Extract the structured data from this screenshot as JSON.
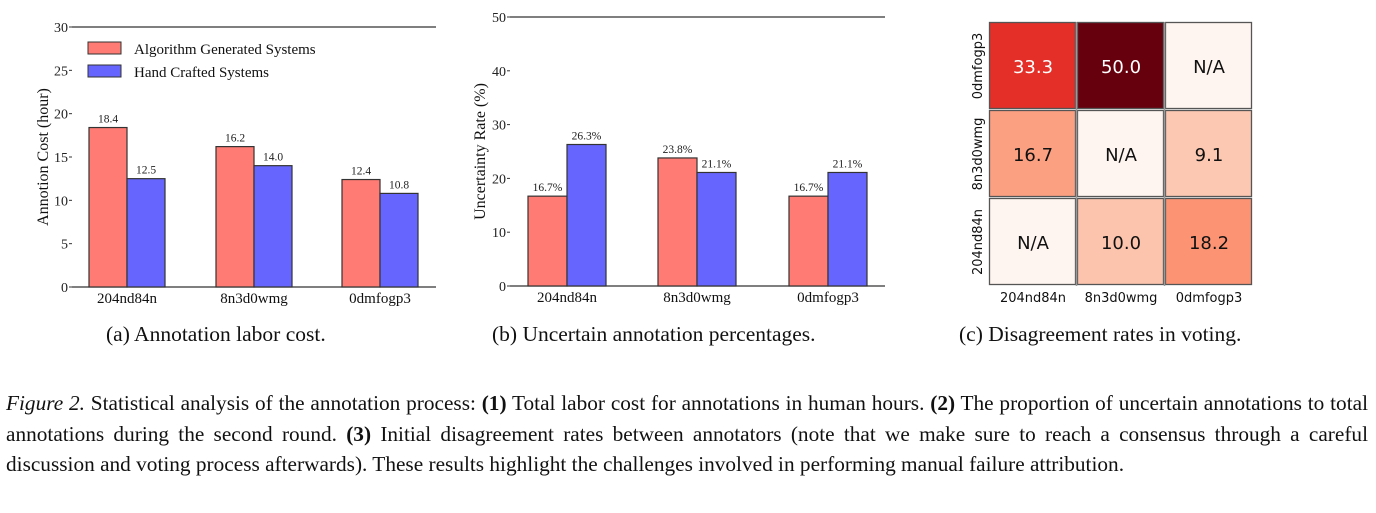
{
  "chart_data": [
    {
      "id": "a",
      "type": "bar",
      "title": "",
      "xlabel": "",
      "ylabel": "Annotion Cost (hour)",
      "ylim": [
        0,
        30
      ],
      "yticks": [
        0,
        5,
        10,
        15,
        20,
        25,
        30
      ],
      "categories": [
        "204nd84n",
        "8n3d0wmg",
        "0dmfogp3"
      ],
      "series": [
        {
          "name": "Algorithm Generated Systems",
          "color": "#ff7b73",
          "values": [
            18.4,
            16.2,
            12.4
          ],
          "labels": [
            "18.4",
            "16.2",
            "12.4"
          ]
        },
        {
          "name": "Hand Crafted Systems",
          "color": "#6666ff",
          "values": [
            12.5,
            14.0,
            10.8
          ],
          "labels": [
            "12.5",
            "14.0",
            "10.8"
          ]
        }
      ],
      "legend": "top-left",
      "grid": false
    },
    {
      "id": "b",
      "type": "bar",
      "title": "",
      "xlabel": "",
      "ylabel": "Uncertainty Rate (%)",
      "ylim": [
        0,
        50
      ],
      "yticks": [
        0,
        10,
        20,
        30,
        40,
        50
      ],
      "categories": [
        "204nd84n",
        "8n3d0wmg",
        "0dmfogp3"
      ],
      "series": [
        {
          "name": "Algorithm Generated Systems",
          "color": "#ff7b73",
          "values": [
            16.7,
            23.8,
            16.7
          ],
          "labels": [
            "16.7%",
            "23.8%",
            "16.7%"
          ]
        },
        {
          "name": "Hand Crafted Systems",
          "color": "#6666ff",
          "values": [
            26.3,
            21.1,
            21.1
          ],
          "labels": [
            "26.3%",
            "21.1%",
            "21.1%"
          ]
        }
      ],
      "grid": false
    },
    {
      "id": "c",
      "type": "heatmap",
      "title": "",
      "x_categories": [
        "204nd84n",
        "8n3d0wmg",
        "0dmfogp3"
      ],
      "y_categories": [
        "0dmfogp3",
        "8n3d0wmg",
        "204nd84n"
      ],
      "cells": [
        [
          {
            "value": 33.3,
            "label": "33.3",
            "color": "#e32f27",
            "text_color": "#ffffff"
          },
          {
            "value": 50.0,
            "label": "50.0",
            "color": "#67000d",
            "text_color": "#ffffff"
          },
          {
            "value": null,
            "label": "N/A",
            "color": "#fff5f0",
            "text_color": "#111111"
          }
        ],
        [
          {
            "value": 16.7,
            "label": "16.7",
            "color": "#fca082",
            "text_color": "#111111"
          },
          {
            "value": null,
            "label": "N/A",
            "color": "#fff5f0",
            "text_color": "#111111"
          },
          {
            "value": 9.1,
            "label": "9.1",
            "color": "#fcc8b2",
            "text_color": "#111111"
          }
        ],
        [
          {
            "value": null,
            "label": "N/A",
            "color": "#fff5f0",
            "text_color": "#111111"
          },
          {
            "value": 10.0,
            "label": "10.0",
            "color": "#fcc4ad",
            "text_color": "#111111"
          },
          {
            "value": 18.2,
            "label": "18.2",
            "color": "#fc9474",
            "text_color": "#111111"
          }
        ]
      ],
      "colormap": "Reds"
    }
  ],
  "subcaptions": {
    "a": "(a)  Annotation labor cost.",
    "b": "(b)  Uncertain annotation percentages.",
    "c": "(c)  Disagreement rates in voting."
  },
  "caption": {
    "figure_label": "Figure 2.",
    "intro": " Statistical analysis of the annotation process: ",
    "m1": "(1)",
    "t1": " Total labor cost for annotations in human hours. ",
    "m2": "(2)",
    "t2": " The proportion of uncertain annotations to total annotations during the second round.  ",
    "m3": "(3)",
    "t3": " Initial disagreement rates between annotators (note that we make sure to reach a consensus through a careful discussion and voting process afterwards).  These results highlight the challenges involved in performing manual failure attribution."
  }
}
